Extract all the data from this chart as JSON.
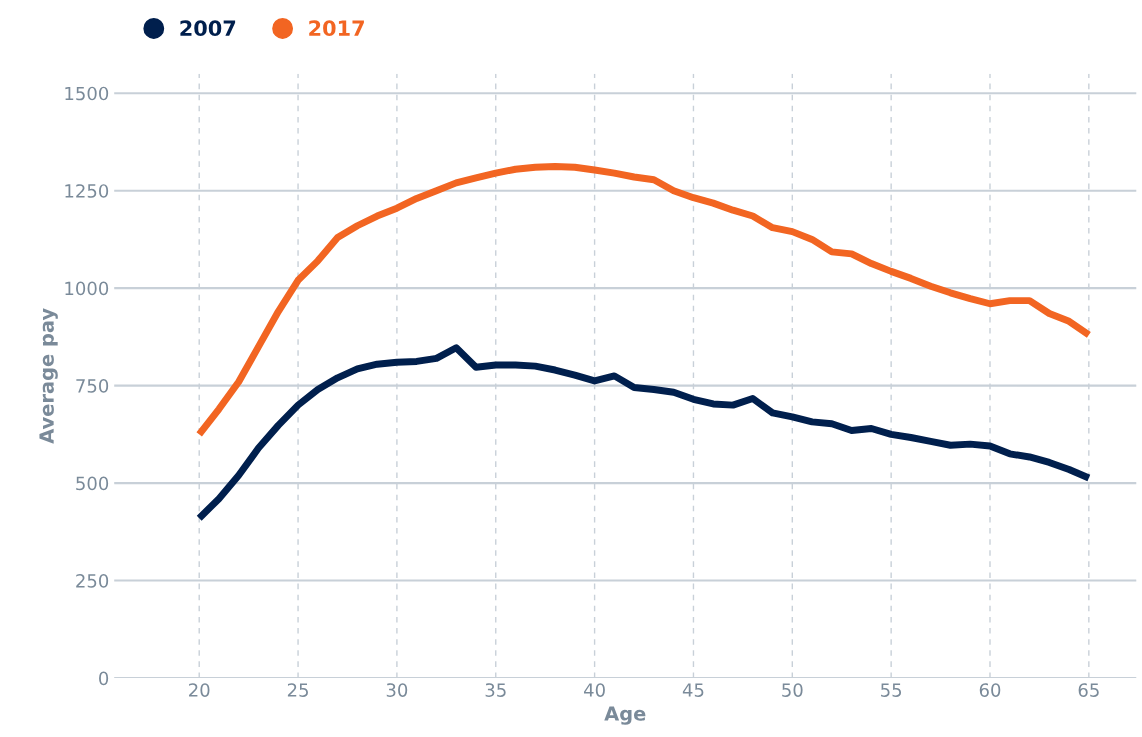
{
  "chart_data": {
    "type": "line",
    "xlabel": "Age",
    "ylabel": "Average pay",
    "x": [
      20,
      21,
      22,
      23,
      24,
      25,
      26,
      27,
      28,
      29,
      30,
      31,
      32,
      33,
      34,
      35,
      36,
      37,
      38,
      39,
      40,
      41,
      42,
      43,
      44,
      45,
      46,
      47,
      48,
      49,
      50,
      51,
      52,
      53,
      54,
      55,
      56,
      57,
      58,
      59,
      60,
      61,
      62,
      63,
      64,
      65
    ],
    "series": [
      {
        "name": "2007",
        "color": "#001f4d",
        "values": [
          410,
          460,
          520,
          590,
          648,
          700,
          740,
          770,
          793,
          805,
          810,
          812,
          820,
          847,
          797,
          803,
          803,
          800,
          790,
          777,
          762,
          775,
          745,
          740,
          733,
          715,
          703,
          700,
          717,
          680,
          670,
          657,
          652,
          635,
          640,
          625,
          617,
          607,
          597,
          600,
          595,
          575,
          567,
          553,
          535,
          513
        ]
      },
      {
        "name": "2017",
        "color": "#f26522",
        "values": [
          625,
          690,
          760,
          850,
          940,
          1020,
          1070,
          1130,
          1160,
          1185,
          1205,
          1230,
          1250,
          1270,
          1283,
          1295,
          1305,
          1310,
          1312,
          1310,
          1303,
          1295,
          1285,
          1278,
          1250,
          1232,
          1218,
          1200,
          1185,
          1155,
          1145,
          1125,
          1093,
          1088,
          1063,
          1043,
          1025,
          1005,
          988,
          973,
          960,
          968,
          968,
          935,
          915,
          880
        ]
      }
    ],
    "xlim": [
      15.7,
      67.4
    ],
    "ylim": [
      0,
      1550
    ],
    "xticks": [
      20,
      25,
      30,
      35,
      40,
      45,
      50,
      55,
      60,
      65
    ],
    "yticks": [
      0,
      250,
      500,
      750,
      1000,
      1250,
      1500
    ],
    "grid": true,
    "legend": "top left",
    "marker": "none",
    "line_style": "solid"
  }
}
